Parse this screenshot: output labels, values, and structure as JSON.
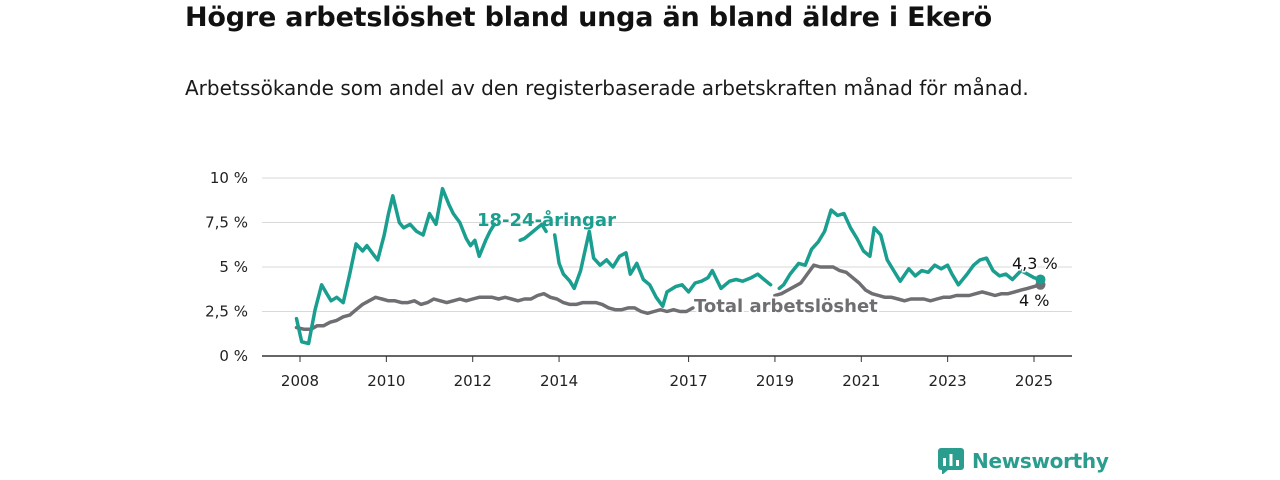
{
  "title": "Högre arbetslöshet bland unga än bland äldre i Ekerö",
  "subtitle": "Arbetssökande som andel av den registerbaserade arbetskraften månad för månad.",
  "brand": {
    "name": "Newsworthy",
    "color": "#2a9d8f"
  },
  "chart_data": {
    "type": "line",
    "ylim": [
      0,
      10
    ],
    "xlim": [
      2007.6,
      2025.9
    ],
    "yticks": [
      0,
      2.5,
      5,
      7.5,
      10
    ],
    "ytick_labels": [
      "0 %",
      "2,5 %",
      "5 %",
      "7,5 %",
      "10 %"
    ],
    "xticks": [
      2008,
      2010,
      2012,
      2014,
      2017,
      2019,
      2021,
      2023,
      2025
    ],
    "xtick_labels": [
      "2008",
      "2010",
      "2012",
      "2014",
      "2017",
      "2019",
      "2021",
      "2023",
      "2025"
    ],
    "grid": true,
    "series": [
      {
        "name": "18-24-åringar",
        "color": "#1a9e8f",
        "end_label": "4,3 %",
        "x": [
          2007.92,
          2008.04,
          2008.2,
          2008.35,
          2008.5,
          2008.62,
          2008.72,
          2008.85,
          2009.0,
          2009.15,
          2009.3,
          2009.45,
          2009.55,
          2009.7,
          2009.8,
          2009.95,
          2010.05,
          2010.15,
          2010.3,
          2010.4,
          2010.55,
          2010.7,
          2010.85,
          2011.0,
          2011.15,
          2011.3,
          2011.45,
          2011.55,
          2011.7,
          2011.85,
          2011.95,
          2012.05,
          2012.15,
          2012.3,
          2012.4,
          2012.5,
          null,
          2013.1,
          2013.2,
          2013.3,
          2013.4,
          2013.5,
          2013.6,
          2013.7,
          null,
          2013.9,
          2014.0,
          2014.1,
          2014.25,
          2014.35,
          2014.5,
          2014.7,
          2014.8,
          2014.95,
          2015.1,
          2015.25,
          2015.4,
          2015.55,
          2015.65,
          2015.8,
          2015.95,
          2016.1,
          2016.25,
          2016.4,
          2016.5,
          2016.7,
          2016.85,
          2017.0,
          2017.15,
          2017.3,
          2017.45,
          2017.55,
          2017.75,
          2017.95,
          2018.1,
          2018.25,
          2018.45,
          2018.6,
          2018.75,
          2018.9,
          null,
          2019.1,
          2019.2,
          2019.35,
          2019.55,
          2019.7,
          2019.85,
          2020.0,
          2020.15,
          2020.3,
          2020.45,
          2020.6,
          2020.75,
          2020.9,
          2021.05,
          2021.2,
          2021.3,
          2021.45,
          2021.6,
          2021.75,
          2021.9,
          2022.1,
          2022.25,
          2022.4,
          2022.55,
          2022.7,
          2022.85,
          2023.0,
          2023.1,
          2023.25,
          2023.45,
          2023.6,
          2023.75,
          2023.9,
          2024.05,
          2024.2,
          2024.35,
          2024.5,
          2024.7,
          2024.85,
          2025.0,
          2025.15
        ],
        "values": [
          2.1,
          0.8,
          0.7,
          2.6,
          4.0,
          3.5,
          3.1,
          3.3,
          3.0,
          4.6,
          6.3,
          5.9,
          6.2,
          5.7,
          5.4,
          6.8,
          8.0,
          9.0,
          7.5,
          7.2,
          7.4,
          7.0,
          6.8,
          8.0,
          7.4,
          9.4,
          8.5,
          8.0,
          7.5,
          6.6,
          6.2,
          6.5,
          5.6,
          6.5,
          7.0,
          7.4,
          null,
          6.5,
          6.6,
          6.8,
          7.0,
          7.2,
          7.4,
          7.0,
          null,
          6.8,
          5.2,
          4.6,
          4.2,
          3.8,
          4.8,
          7.0,
          5.5,
          5.1,
          5.4,
          5.0,
          5.6,
          5.8,
          4.6,
          5.2,
          4.3,
          4.0,
          3.3,
          2.8,
          3.6,
          3.9,
          4.0,
          3.6,
          4.1,
          4.2,
          4.4,
          4.8,
          3.8,
          4.2,
          4.3,
          4.2,
          4.4,
          4.6,
          4.3,
          4.0,
          null,
          3.8,
          4.0,
          4.6,
          5.2,
          5.1,
          6.0,
          6.4,
          7.0,
          8.2,
          7.9,
          8.0,
          7.2,
          6.6,
          5.9,
          5.6,
          7.2,
          6.8,
          5.4,
          4.8,
          4.2,
          4.9,
          4.5,
          4.8,
          4.7,
          5.1,
          4.9,
          5.1,
          4.6,
          4.0,
          4.6,
          5.1,
          5.4,
          5.5,
          4.8,
          4.5,
          4.6,
          4.3,
          4.8,
          4.6,
          4.4,
          4.3
        ]
      },
      {
        "name": "Total arbetslöshet",
        "color": "#6e6e73",
        "end_label": "4 %",
        "x": [
          2007.92,
          2008.1,
          2008.25,
          2008.4,
          2008.55,
          2008.7,
          2008.85,
          2009.0,
          2009.15,
          2009.3,
          2009.45,
          2009.6,
          2009.75,
          2009.9,
          2010.05,
          2010.2,
          2010.35,
          2010.5,
          2010.65,
          2010.8,
          2010.95,
          2011.1,
          2011.25,
          2011.4,
          2011.55,
          2011.7,
          2011.85,
          2012.0,
          2012.15,
          2012.3,
          2012.45,
          2012.6,
          2012.75,
          2012.9,
          2013.05,
          2013.2,
          2013.35,
          2013.5,
          2013.65,
          2013.8,
          2013.95,
          2014.1,
          2014.25,
          2014.4,
          2014.55,
          2014.7,
          2014.85,
          2015.0,
          2015.15,
          2015.3,
          2015.45,
          2015.6,
          2015.75,
          2015.9,
          2016.05,
          2016.2,
          2016.35,
          2016.5,
          2016.65,
          2016.8,
          2016.95,
          2017.1,
          null,
          2019.0,
          2019.15,
          2019.3,
          2019.45,
          2019.6,
          2019.75,
          2019.9,
          2020.05,
          2020.2,
          2020.35,
          2020.5,
          2020.65,
          2020.8,
          2020.95,
          2021.1,
          2021.25,
          2021.4,
          2021.55,
          2021.7,
          2021.85,
          2022.0,
          2022.15,
          2022.3,
          2022.45,
          2022.6,
          2022.75,
          2022.9,
          2023.05,
          2023.2,
          2023.35,
          2023.5,
          2023.65,
          2023.8,
          2023.95,
          2024.1,
          2024.25,
          2024.4,
          2024.55,
          2024.7,
          2024.85,
          2025.0,
          2025.15
        ],
        "values": [
          1.6,
          1.5,
          1.5,
          1.7,
          1.7,
          1.9,
          2.0,
          2.2,
          2.3,
          2.6,
          2.9,
          3.1,
          3.3,
          3.2,
          3.1,
          3.1,
          3.0,
          3.0,
          3.1,
          2.9,
          3.0,
          3.2,
          3.1,
          3.0,
          3.1,
          3.2,
          3.1,
          3.2,
          3.3,
          3.3,
          3.3,
          3.2,
          3.3,
          3.2,
          3.1,
          3.2,
          3.2,
          3.4,
          3.5,
          3.3,
          3.2,
          3.0,
          2.9,
          2.9,
          3.0,
          3.0,
          3.0,
          2.9,
          2.7,
          2.6,
          2.6,
          2.7,
          2.7,
          2.5,
          2.4,
          2.5,
          2.6,
          2.5,
          2.6,
          2.5,
          2.5,
          2.7,
          null,
          3.4,
          3.5,
          3.7,
          3.9,
          4.1,
          4.6,
          5.1,
          5.0,
          5.0,
          5.0,
          4.8,
          4.7,
          4.4,
          4.1,
          3.7,
          3.5,
          3.4,
          3.3,
          3.3,
          3.2,
          3.1,
          3.2,
          3.2,
          3.2,
          3.1,
          3.2,
          3.3,
          3.3,
          3.4,
          3.4,
          3.4,
          3.5,
          3.6,
          3.5,
          3.4,
          3.5,
          3.5,
          3.6,
          3.7,
          3.8,
          3.9,
          4.0
        ]
      }
    ]
  }
}
